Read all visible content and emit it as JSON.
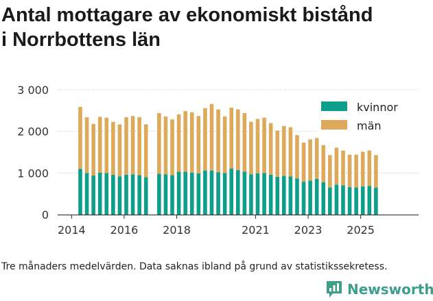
{
  "title_lines": [
    "Antal mottagare av ekonomiskt bistånd",
    "i Norrbottens län"
  ],
  "footnote": "Tre månaders medelvärden. Data saknas ibland på grund av statistikssekretess.",
  "brand": "Newsworthy",
  "colors": {
    "kvinnor": "#0e9e8c",
    "man": "#dcaa5a",
    "grid": "#d4d4d4",
    "brand": "#3e9e8c"
  },
  "chart_data": {
    "type": "bar",
    "stacked": true,
    "title": "Antal mottagare av ekonomiskt bistånd i Norrbottens län",
    "xlabel": "",
    "ylabel": "",
    "ylim": [
      0,
      3000
    ],
    "yticks": [
      0,
      1000,
      2000,
      3000
    ],
    "ytick_labels": [
      "0",
      "1 000",
      "2 000",
      "3 000"
    ],
    "xticks": [
      {
        "label": "2014",
        "x": 2014.0
      },
      {
        "label": "2016",
        "x": 2016.0
      },
      {
        "label": "2018",
        "x": 2018.0
      },
      {
        "label": "2021",
        "x": 2021.0
      },
      {
        "label": "2023",
        "x": 2023.0
      },
      {
        "label": "2025",
        "x": 2025.0
      }
    ],
    "legend": {
      "position": "top-right",
      "entries": [
        "kvinnor",
        "män"
      ]
    },
    "series": [
      {
        "name": "kvinnor",
        "points": [
          {
            "x": 2014.33,
            "y": 1100
          },
          {
            "x": 2014.58,
            "y": 1000
          },
          {
            "x": 2014.83,
            "y": 940
          },
          {
            "x": 2015.08,
            "y": 1010
          },
          {
            "x": 2015.33,
            "y": 1000
          },
          {
            "x": 2015.58,
            "y": 960
          },
          {
            "x": 2015.83,
            "y": 920
          },
          {
            "x": 2016.08,
            "y": 960
          },
          {
            "x": 2016.33,
            "y": 970
          },
          {
            "x": 2016.58,
            "y": 950
          },
          {
            "x": 2016.83,
            "y": 900
          },
          {
            "x": 2017.33,
            "y": 980
          },
          {
            "x": 2017.58,
            "y": 970
          },
          {
            "x": 2017.83,
            "y": 950
          },
          {
            "x": 2018.08,
            "y": 1030
          },
          {
            "x": 2018.33,
            "y": 1030
          },
          {
            "x": 2018.58,
            "y": 1010
          },
          {
            "x": 2018.83,
            "y": 990
          },
          {
            "x": 2019.08,
            "y": 1060
          },
          {
            "x": 2019.33,
            "y": 1060
          },
          {
            "x": 2019.58,
            "y": 1020
          },
          {
            "x": 2019.83,
            "y": 1000
          },
          {
            "x": 2020.08,
            "y": 1110
          },
          {
            "x": 2020.33,
            "y": 1070
          },
          {
            "x": 2020.58,
            "y": 1030
          },
          {
            "x": 2020.83,
            "y": 970
          },
          {
            "x": 2021.08,
            "y": 990
          },
          {
            "x": 2021.33,
            "y": 1000
          },
          {
            "x": 2021.58,
            "y": 960
          },
          {
            "x": 2021.83,
            "y": 910
          },
          {
            "x": 2022.08,
            "y": 930
          },
          {
            "x": 2022.33,
            "y": 920
          },
          {
            "x": 2022.58,
            "y": 870
          },
          {
            "x": 2022.83,
            "y": 790
          },
          {
            "x": 2023.08,
            "y": 820
          },
          {
            "x": 2023.33,
            "y": 860
          },
          {
            "x": 2023.58,
            "y": 780
          },
          {
            "x": 2023.83,
            "y": 650
          },
          {
            "x": 2024.08,
            "y": 720
          },
          {
            "x": 2024.33,
            "y": 700
          },
          {
            "x": 2024.58,
            "y": 660
          },
          {
            "x": 2024.83,
            "y": 650
          },
          {
            "x": 2025.08,
            "y": 680
          },
          {
            "x": 2025.33,
            "y": 690
          },
          {
            "x": 2025.58,
            "y": 650
          }
        ]
      },
      {
        "name": "män",
        "points": [
          {
            "x": 2014.33,
            "y": 1490
          },
          {
            "x": 2014.58,
            "y": 1340
          },
          {
            "x": 2014.83,
            "y": 1240
          },
          {
            "x": 2015.08,
            "y": 1340
          },
          {
            "x": 2015.33,
            "y": 1330
          },
          {
            "x": 2015.58,
            "y": 1270
          },
          {
            "x": 2015.83,
            "y": 1250
          },
          {
            "x": 2016.08,
            "y": 1380
          },
          {
            "x": 2016.33,
            "y": 1400
          },
          {
            "x": 2016.58,
            "y": 1390
          },
          {
            "x": 2016.83,
            "y": 1270
          },
          {
            "x": 2017.33,
            "y": 1460
          },
          {
            "x": 2017.58,
            "y": 1390
          },
          {
            "x": 2017.83,
            "y": 1340
          },
          {
            "x": 2018.08,
            "y": 1380
          },
          {
            "x": 2018.33,
            "y": 1460
          },
          {
            "x": 2018.58,
            "y": 1450
          },
          {
            "x": 2018.83,
            "y": 1380
          },
          {
            "x": 2019.08,
            "y": 1500
          },
          {
            "x": 2019.33,
            "y": 1600
          },
          {
            "x": 2019.58,
            "y": 1510
          },
          {
            "x": 2019.83,
            "y": 1360
          },
          {
            "x": 2020.08,
            "y": 1460
          },
          {
            "x": 2020.33,
            "y": 1460
          },
          {
            "x": 2020.58,
            "y": 1410
          },
          {
            "x": 2020.83,
            "y": 1260
          },
          {
            "x": 2021.08,
            "y": 1310
          },
          {
            "x": 2021.33,
            "y": 1330
          },
          {
            "x": 2021.58,
            "y": 1240
          },
          {
            "x": 2021.83,
            "y": 1110
          },
          {
            "x": 2022.08,
            "y": 1200
          },
          {
            "x": 2022.33,
            "y": 1180
          },
          {
            "x": 2022.58,
            "y": 1040
          },
          {
            "x": 2022.83,
            "y": 940
          },
          {
            "x": 2023.08,
            "y": 990
          },
          {
            "x": 2023.33,
            "y": 980
          },
          {
            "x": 2023.58,
            "y": 890
          },
          {
            "x": 2023.83,
            "y": 780
          },
          {
            "x": 2024.08,
            "y": 890
          },
          {
            "x": 2024.33,
            "y": 840
          },
          {
            "x": 2024.58,
            "y": 780
          },
          {
            "x": 2024.83,
            "y": 790
          },
          {
            "x": 2025.08,
            "y": 830
          },
          {
            "x": 2025.33,
            "y": 850
          },
          {
            "x": 2025.58,
            "y": 780
          }
        ]
      }
    ]
  }
}
